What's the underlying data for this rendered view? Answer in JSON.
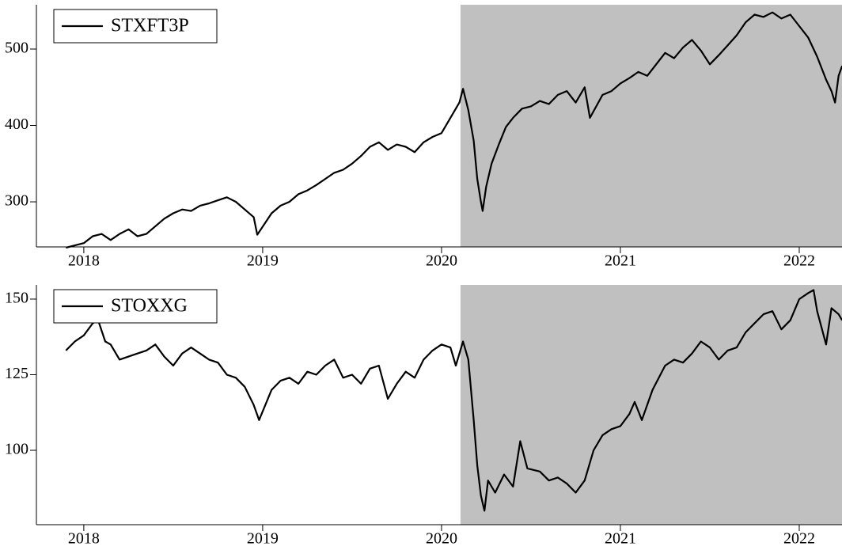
{
  "chart_data": [
    {
      "type": "line",
      "x": [
        2017.9,
        2017.95,
        2018.0,
        2018.05,
        2018.1,
        2018.15,
        2018.2,
        2018.25,
        2018.3,
        2018.35,
        2018.4,
        2018.45,
        2018.5,
        2018.55,
        2018.6,
        2018.65,
        2018.7,
        2018.75,
        2018.8,
        2018.85,
        2018.9,
        2018.95,
        2018.97,
        2019.05,
        2019.1,
        2019.15,
        2019.2,
        2019.25,
        2019.3,
        2019.35,
        2019.4,
        2019.45,
        2019.5,
        2019.55,
        2019.6,
        2019.65,
        2019.7,
        2019.75,
        2019.8,
        2019.85,
        2019.9,
        2019.95,
        2020.0,
        2020.05,
        2020.1,
        2020.12,
        2020.15,
        2020.18,
        2020.2,
        2020.22,
        2020.23,
        2020.25,
        2020.28,
        2020.32,
        2020.36,
        2020.4,
        2020.45,
        2020.5,
        2020.55,
        2020.6,
        2020.65,
        2020.7,
        2020.75,
        2020.8,
        2020.83,
        2020.9,
        2020.95,
        2021.0,
        2021.05,
        2021.1,
        2021.15,
        2021.2,
        2021.25,
        2021.3,
        2021.35,
        2021.4,
        2021.45,
        2021.5,
        2021.55,
        2021.6,
        2021.65,
        2021.7,
        2021.75,
        2021.8,
        2021.85,
        2021.9,
        2021.95,
        2022.0,
        2022.05,
        2022.1,
        2022.15,
        2022.18,
        2022.2,
        2022.22,
        2022.24
      ],
      "series": [
        {
          "name": "STXFT3P",
          "color": "#000000",
          "values": [
            240,
            243,
            246,
            255,
            258,
            250,
            258,
            264,
            255,
            258,
            268,
            278,
            285,
            290,
            288,
            295,
            298,
            302,
            306,
            300,
            290,
            280,
            257,
            285,
            295,
            300,
            310,
            315,
            322,
            330,
            338,
            342,
            350,
            360,
            372,
            378,
            368,
            375,
            372,
            365,
            378,
            385,
            390,
            410,
            430,
            448,
            420,
            380,
            330,
            300,
            288,
            320,
            350,
            375,
            398,
            410,
            422,
            425,
            432,
            428,
            440,
            445,
            430,
            450,
            410,
            440,
            445,
            455,
            462,
            470,
            465,
            480,
            495,
            488,
            502,
            512,
            498,
            480,
            492,
            505,
            518,
            535,
            545,
            542,
            548,
            540,
            545,
            530,
            515,
            490,
            460,
            445,
            430,
            465,
            478
          ]
        }
      ],
      "xlim": [
        2017.735,
        2022.239
      ],
      "ylim": [
        241,
        558
      ],
      "xticks": [
        2018,
        2019,
        2020,
        2021,
        2022
      ],
      "yticks": [
        300,
        400,
        500
      ],
      "shade_from": 2020.106,
      "shade_color": "#c0c0c0",
      "legend": "upper left"
    },
    {
      "type": "line",
      "x": [
        2017.9,
        2017.95,
        2018.0,
        2018.05,
        2018.08,
        2018.12,
        2018.15,
        2018.2,
        2018.25,
        2018.3,
        2018.35,
        2018.4,
        2018.45,
        2018.5,
        2018.55,
        2018.6,
        2018.65,
        2018.7,
        2018.75,
        2018.8,
        2018.85,
        2018.9,
        2018.95,
        2018.98,
        2019.05,
        2019.1,
        2019.15,
        2019.2,
        2019.25,
        2019.3,
        2019.35,
        2019.4,
        2019.45,
        2019.5,
        2019.55,
        2019.6,
        2019.65,
        2019.7,
        2019.75,
        2019.8,
        2019.85,
        2019.9,
        2019.95,
        2020.0,
        2020.05,
        2020.08,
        2020.12,
        2020.15,
        2020.18,
        2020.2,
        2020.22,
        2020.24,
        2020.26,
        2020.3,
        2020.35,
        2020.4,
        2020.44,
        2020.48,
        2020.55,
        2020.6,
        2020.65,
        2020.7,
        2020.75,
        2020.8,
        2020.85,
        2020.9,
        2020.95,
        2021.0,
        2021.05,
        2021.08,
        2021.12,
        2021.18,
        2021.25,
        2021.3,
        2021.35,
        2021.4,
        2021.45,
        2021.5,
        2021.55,
        2021.6,
        2021.65,
        2021.7,
        2021.75,
        2021.8,
        2021.85,
        2021.9,
        2021.95,
        2022.0,
        2022.05,
        2022.08,
        2022.1,
        2022.15,
        2022.18,
        2022.22,
        2022.24
      ],
      "series": [
        {
          "name": "STOXXG",
          "color": "#000000",
          "values": [
            133,
            136,
            138,
            142,
            143,
            136,
            135,
            130,
            131,
            132,
            133,
            135,
            131,
            128,
            132,
            134,
            132,
            130,
            129,
            125,
            124,
            121,
            115,
            110,
            120,
            123,
            124,
            122,
            126,
            125,
            128,
            130,
            124,
            125,
            122,
            127,
            128,
            117,
            122,
            126,
            124,
            130,
            133,
            135,
            134,
            128,
            136,
            130,
            110,
            95,
            85,
            80,
            90,
            86,
            92,
            88,
            103,
            94,
            93,
            90,
            91,
            89,
            86,
            90,
            100,
            105,
            107,
            108,
            112,
            116,
            110,
            120,
            128,
            130,
            129,
            132,
            136,
            134,
            130,
            133,
            134,
            139,
            142,
            145,
            146,
            140,
            143,
            150,
            152,
            153,
            146,
            135,
            147,
            145,
            143
          ]
        }
      ],
      "xlim": [
        2017.735,
        2022.239
      ],
      "ylim": [
        75.4,
        154.7
      ],
      "xticks": [
        2018,
        2019,
        2020,
        2021,
        2022
      ],
      "yticks": [
        100,
        125,
        150
      ],
      "shade_from": 2020.106,
      "shade_color": "#c0c0c0",
      "legend": "upper left"
    }
  ]
}
